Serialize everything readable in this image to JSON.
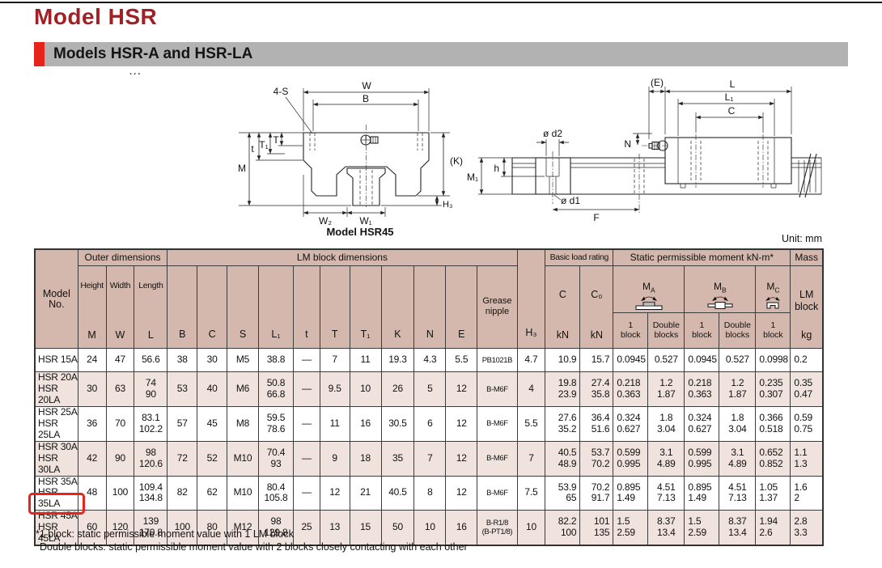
{
  "page": {
    "title": "Model HSR",
    "section_title": "Models HSR-A and HSR-LA",
    "ellipsis": "···",
    "unit_note": "Unit: mm"
  },
  "colors": {
    "title_red": "#a02125",
    "accent_red": "#e8231c",
    "header_bg": "#d5b8ad",
    "row_alt_bg": "#f0e3dd",
    "section_bar_gray": "#b2b2b2"
  },
  "drawings": {
    "left": {
      "caption": "Model HSR45",
      "labels": {
        "s4": "4-S",
        "w": "W",
        "b": "B",
        "t": "t",
        "t1": "T₁",
        "tt": "T",
        "m": "M",
        "k": "(K)",
        "h3": "H₃",
        "w2": "W₂",
        "w1": "W₁"
      }
    },
    "right": {
      "labels": {
        "e": "(E)",
        "l": "L",
        "l1": "L₁",
        "c": "C",
        "n": "N",
        "d2": "ø d2",
        "h": "h",
        "m1": "M₁",
        "d1": "ø d1",
        "f": "F"
      }
    }
  },
  "table": {
    "groups": {
      "model": "Model\nNo.",
      "outer": "Outer dimensions",
      "lm_block": "LM block dimensions",
      "basic_load": "Basic load rating",
      "static_moment": "Static permissible moment kN-m*",
      "mass": "Mass"
    },
    "sub": {
      "height": "Height",
      "width": "Width",
      "length": "Length",
      "m": "M",
      "w": "W",
      "l": "L",
      "b": "B",
      "c": "C",
      "s": "S",
      "l1": "L₁",
      "t": "t",
      "tt": "T",
      "t1": "T₁",
      "k": "K",
      "n": "N",
      "e": "E",
      "grease": "Grease\nnipple",
      "h3": "H₃",
      "c_cap": "C",
      "c0": "C₀",
      "kn": "kN",
      "ma": {
        "base": "M",
        "sub": "A"
      },
      "mb": {
        "base": "M",
        "sub": "B"
      },
      "mc": {
        "base": "M",
        "sub": "C"
      },
      "one_block": "1\nblock",
      "double_blocks": "Double\nblocks",
      "lm_block": "LM\nblock",
      "kg": "kg"
    },
    "rows": [
      {
        "model": "HSR 15A",
        "cells": [
          "24",
          "47",
          "56.6",
          "38",
          "30",
          "M5",
          "38.8",
          "—",
          "7",
          "11",
          "19.3",
          "4.3",
          "5.5",
          "PB1021B",
          "4.7",
          "10.9",
          "15.7",
          "0.0945",
          "0.527",
          "0.0945",
          "0.527",
          "0.0998",
          "0.2"
        ]
      },
      {
        "model": "HSR 20A\nHSR 20LA",
        "cells": [
          "30",
          "63",
          "74\n90",
          "53",
          "40",
          "M6",
          "50.8\n66.8",
          "—",
          "9.5",
          "10",
          "26",
          "5",
          "12",
          "B-M6F",
          "4",
          "19.8\n23.9",
          "27.4\n35.8",
          "0.218\n0.363",
          "1.2\n1.87",
          "0.218\n0.363",
          "1.2\n1.87",
          "0.235\n0.307",
          "0.35\n0.47"
        ]
      },
      {
        "model": "HSR 25A\nHSR 25LA",
        "cells": [
          "36",
          "70",
          "83.1\n102.2",
          "57",
          "45",
          "M8",
          "59.5\n78.6",
          "—",
          "11",
          "16",
          "30.5",
          "6",
          "12",
          "B-M6F",
          "5.5",
          "27.6\n35.2",
          "36.4\n51.6",
          "0.324\n0.627",
          "1.8\n3.04",
          "0.324\n0.627",
          "1.8\n3.04",
          "0.366\n0.518",
          "0.59\n0.75"
        ]
      },
      {
        "model": "HSR 30A\nHSR 30LA",
        "cells": [
          "42",
          "90",
          "98\n120.6",
          "72",
          "52",
          "M10",
          "70.4\n93",
          "—",
          "9",
          "18",
          "35",
          "7",
          "12",
          "B-M6F",
          "7",
          "40.5\n48.9",
          "53.7\n70.2",
          "0.599\n0.995",
          "3.1\n4.89",
          "0.599\n0.995",
          "3.1\n4.89",
          "0.652\n0.852",
          "1.1\n1.3"
        ]
      },
      {
        "model": "HSR 35A\nHSR 35LA",
        "cells": [
          "48",
          "100",
          "109.4\n134.8",
          "82",
          "62",
          "M10",
          "80.4\n105.8",
          "—",
          "12",
          "21",
          "40.5",
          "8",
          "12",
          "B-M6F",
          "7.5",
          "53.9\n65",
          "70.2\n91.7",
          "0.895\n1.49",
          "4.51\n7.13",
          "0.895\n1.49",
          "4.51\n7.13",
          "1.05\n1.37",
          "1.6\n2"
        ]
      },
      {
        "model": "HSR 45A\nHSR 45LA",
        "cells": [
          "60",
          "120",
          "139\n170.8",
          "100",
          "80",
          "M12",
          "98\n129.8",
          "25",
          "13",
          "15",
          "50",
          "10",
          "16",
          "B-R1/8\n(B-PT1/8)",
          "10",
          "82.2\n100",
          "101\n135",
          "1.5\n2.59",
          "8.37\n13.4",
          "1.5\n2.59",
          "8.37\n13.4",
          "1.94\n2.6",
          "2.8\n3.3"
        ]
      }
    ],
    "footnotes": [
      "*1 block: static permissible moment value with 1 LM block",
      "Double blocks: static permissible moment value with 2 blocks closely contacting with each other"
    ]
  }
}
